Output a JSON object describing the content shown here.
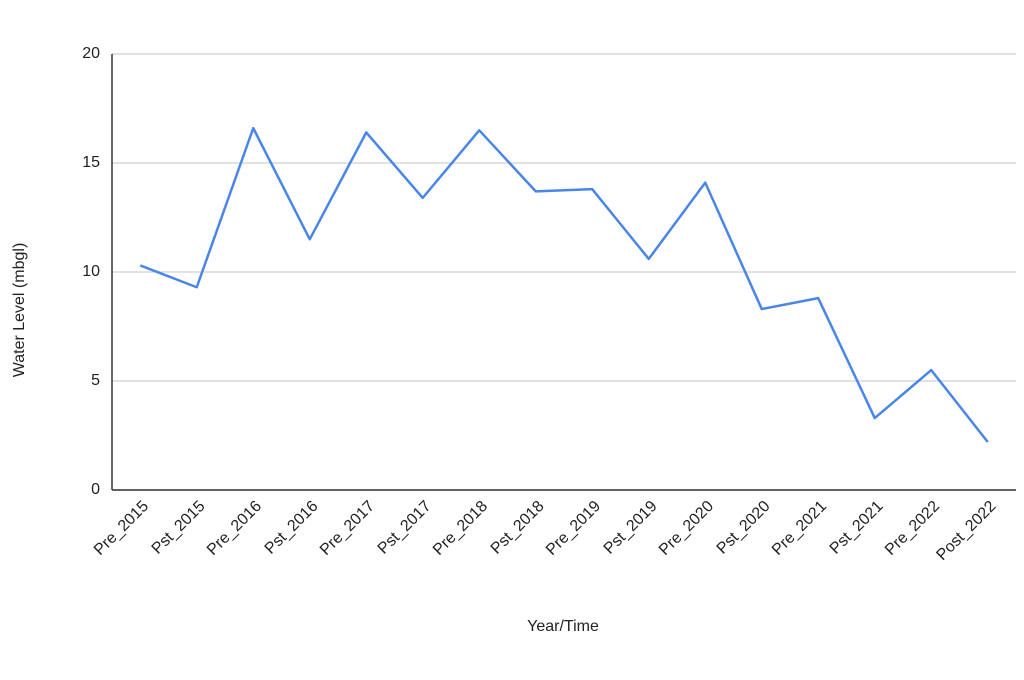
{
  "chart_data": {
    "type": "line",
    "categories": [
      "Pre_2015",
      "Pst_2015",
      "Pre_2016",
      "Pst_2016",
      "Pre_2017",
      "Pst_2017",
      "Pre_2018",
      "Pst_2018",
      "Pre_2019",
      "Pst_2019",
      "Pre_2020",
      "Pst_2020",
      "Pre_2021",
      "Pst_2021",
      "Pre_2022",
      "Post_2022"
    ],
    "values": [
      10.3,
      9.3,
      16.6,
      11.5,
      16.4,
      13.4,
      16.5,
      13.7,
      13.8,
      10.6,
      14.1,
      8.3,
      8.8,
      3.3,
      5.5,
      2.2
    ],
    "color": "#4a86e8",
    "x_label": "Year/Time",
    "y_label": "Water Level (mbgl)",
    "ylim": [
      0,
      20
    ],
    "yticks": [
      0,
      5,
      10,
      15,
      20
    ],
    "grid": true
  }
}
